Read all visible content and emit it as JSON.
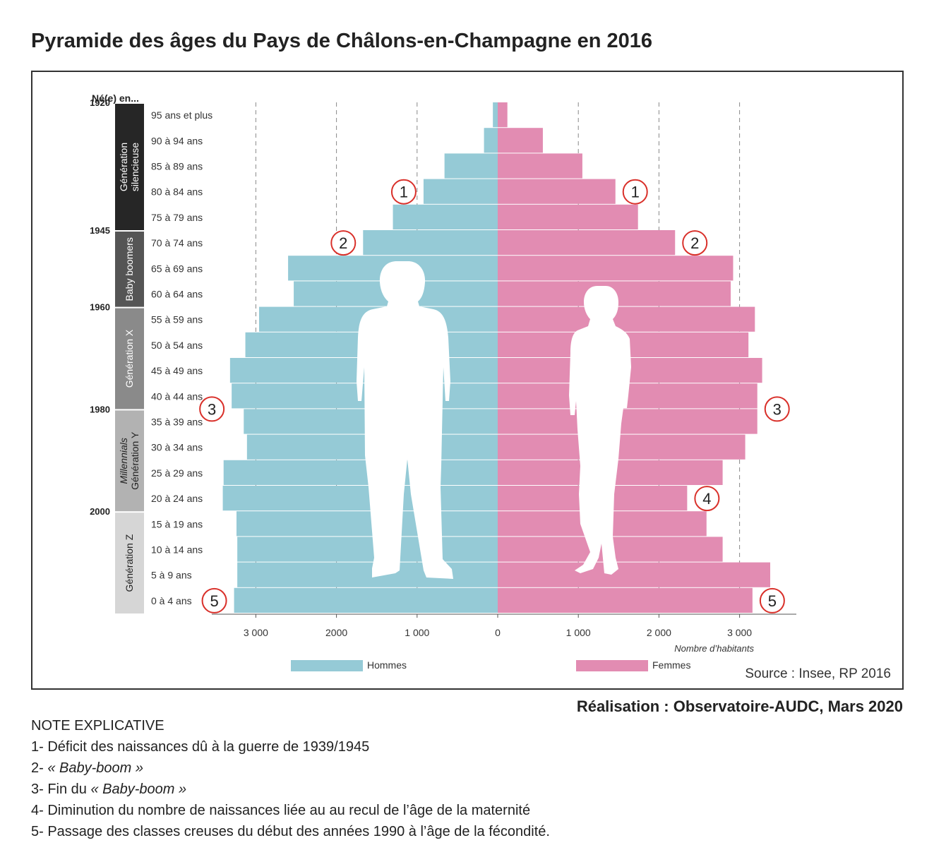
{
  "title": "Pyramide des âges du Pays de Châlons-en-Champagne en 2016",
  "credit": "Réalisation : Observatoire-AUDC, Mars 2020",
  "notes": {
    "heading": "NOTE EXPLICATIVE",
    "items": [
      {
        "prefix": "1- ",
        "text": "Déficit des naissances dû à la guerre de 1939/1945",
        "italic": ""
      },
      {
        "prefix": "2- ",
        "text": "",
        "italic": "« Baby-boom »"
      },
      {
        "prefix": "3- Fin du ",
        "text": "",
        "italic": "« Baby-boom »"
      },
      {
        "prefix": "4- ",
        "text": "Diminution du nombre de naissances liée au au recul de l’âge de la maternité",
        "italic": ""
      },
      {
        "prefix": "5- ",
        "text": "Passage des classes creuses du début des années 1990 à l’âge de la fécondité.",
        "italic": ""
      }
    ]
  },
  "chart_data": {
    "type": "bar",
    "orientation": "horizontal-pyramid",
    "categories": [
      "95 ans et plus",
      "90 à 94 ans",
      "85 à 89 ans",
      "80 à 84 ans",
      "75 à 79 ans",
      "70 à 74 ans",
      "65 à 69 ans",
      "60 à 64 ans",
      "55 à 59 ans",
      "50 à 54 ans",
      "45 à 49 ans",
      "40 à 44 ans",
      "35 à 39 ans",
      "30 à 34 ans",
      "25 à 29 ans",
      "20 à 24 ans",
      "15 à 19 ans",
      "10 à 14 ans",
      "5 à 9 ans",
      "0 à 4 ans"
    ],
    "series": [
      {
        "name": "Hommes",
        "color": "#95cad6",
        "values": [
          60,
          170,
          660,
          920,
          1300,
          1670,
          2600,
          2530,
          2960,
          3130,
          3320,
          3300,
          3150,
          3110,
          3400,
          3410,
          3240,
          3230,
          3230,
          3270
        ]
      },
      {
        "name": "Femmes",
        "color": "#e28cb2",
        "values": [
          120,
          560,
          1050,
          1460,
          1740,
          2200,
          2920,
          2890,
          3190,
          3110,
          3280,
          3220,
          3220,
          3070,
          2790,
          2350,
          2590,
          2790,
          3380,
          3160
        ]
      }
    ],
    "xlabel": "Nombre d’habitants",
    "xticks": [
      {
        "value": -3000,
        "label": "3 000"
      },
      {
        "value": -2000,
        "label": "2000"
      },
      {
        "value": -1000,
        "label": "1 000"
      },
      {
        "value": 0,
        "label": "0"
      },
      {
        "value": 1000,
        "label": "1 000"
      },
      {
        "value": 2000,
        "label": "2 000"
      },
      {
        "value": 3000,
        "label": "3 000"
      }
    ],
    "xlim": [
      -3000,
      3000
    ],
    "grid": "vertical dashed",
    "legend": "bottom",
    "source": "Source : Insee, RP 2016",
    "born_header": "Né(e) en...",
    "birth_years": [
      {
        "label": "1920",
        "at_index": 0
      },
      {
        "label": "1945",
        "at_index": 5
      },
      {
        "label": "1960",
        "at_index": 8
      },
      {
        "label": "1980",
        "at_index": 12
      },
      {
        "label": "2000",
        "at_index": 16
      }
    ],
    "generations": [
      {
        "lines": [
          "Génération",
          "silencieuse"
        ],
        "italic_first": false,
        "from": 0,
        "to": 4,
        "color": "#262626"
      },
      {
        "lines": [
          "Baby   boomers"
        ],
        "italic_first": false,
        "from": 5,
        "to": 7,
        "color": "#555555"
      },
      {
        "lines": [
          "Génération X"
        ],
        "italic_first": false,
        "from": 8,
        "to": 11,
        "color": "#8a8a8a"
      },
      {
        "lines": [
          "Millennials",
          "Génération Y"
        ],
        "italic_first": true,
        "from": 12,
        "to": 15,
        "color": "#b2b2b2"
      },
      {
        "lines": [
          "Génération Z"
        ],
        "italic_first": false,
        "from": 16,
        "to": 19,
        "color": "#d6d6d6"
      }
    ],
    "annotations": [
      {
        "label": "1",
        "side": "men",
        "index": 3
      },
      {
        "label": "1",
        "side": "women",
        "index": 3
      },
      {
        "label": "2",
        "side": "men",
        "index": 5
      },
      {
        "label": "2",
        "side": "women",
        "index": 5
      },
      {
        "label": "3",
        "side": "men",
        "index": 11.5
      },
      {
        "label": "3",
        "side": "women",
        "index": 11.5
      },
      {
        "label": "4",
        "side": "women",
        "index": 15
      },
      {
        "label": "5",
        "side": "men",
        "index": 19
      },
      {
        "label": "5",
        "side": "women",
        "index": 19
      }
    ],
    "annotation_color": "#d9302a"
  }
}
